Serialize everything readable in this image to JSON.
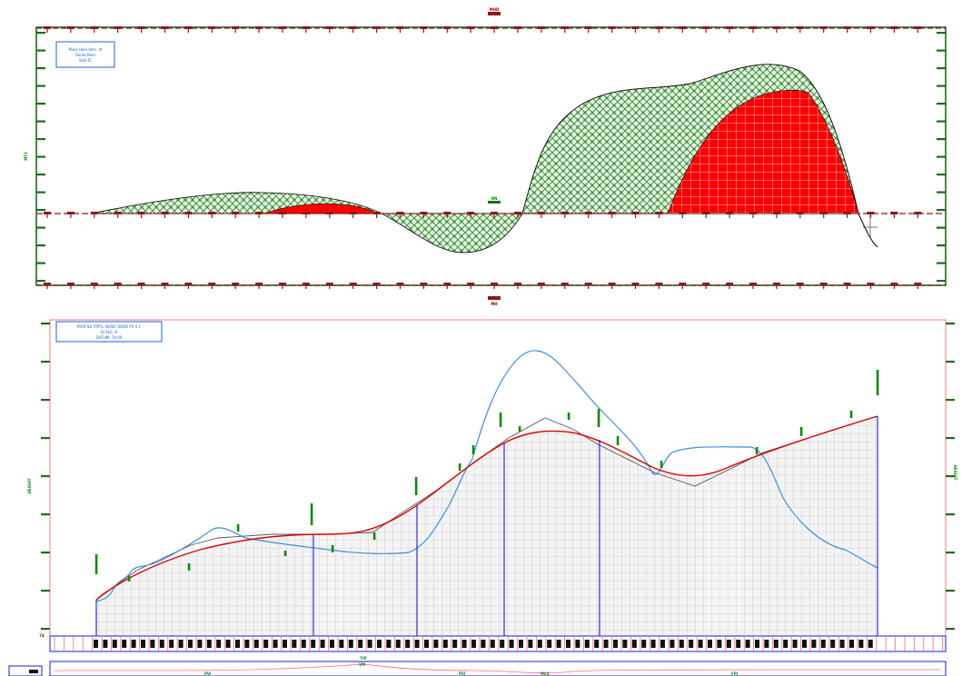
{
  "mass_haul": {
    "title_box": {
      "line1": "Mass Haul Vers. af",
      "line2": "Route Bool",
      "line3": "SUB-TC"
    },
    "top_center_label": "MHD",
    "mid_label": "NN",
    "bottom_center_label": "MH",
    "left_axis_label": "MT3"
  },
  "profile": {
    "title_box": {
      "line1": "PROFILE FMTS. BASIC ROAD PV 0.1",
      "line2": "SCALE: H",
      "line3": "DATUM: 74.00"
    },
    "left_axis_label": "HEIGHT",
    "right_axis_label": "HEIGHT",
    "datum_label": "74"
  },
  "band": {
    "center_label": "TIP",
    "bottom_labels": [
      "PVI",
      "VPI",
      "PVI",
      "MLS",
      "FPI"
    ]
  },
  "colors": {
    "frame_green": "#1e6b1e",
    "tick_red": "#8b1a1a",
    "cut_fill": "#ff0000",
    "fill_green": "#2e8b2e",
    "profile_red": "#e00000",
    "ground_blue": "#3a8ee6",
    "station_blue": "#1a1ae0"
  }
}
